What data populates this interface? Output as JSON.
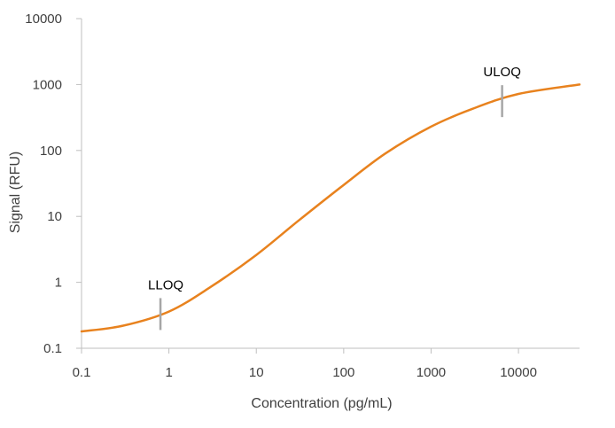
{
  "chart_data": {
    "type": "line",
    "title": "",
    "xlabel": "Concentration (pg/mL)",
    "ylabel": "Signal (RFU)",
    "x_scale": "log",
    "y_scale": "log",
    "xlim": [
      0.1,
      50000
    ],
    "ylim": [
      0.1,
      10000
    ],
    "x_ticks": [
      0.1,
      1,
      10,
      100,
      1000,
      10000
    ],
    "x_tick_labels": [
      "0.1",
      "1",
      "10",
      "100",
      "1000",
      "10000"
    ],
    "y_ticks": [
      0.1,
      1,
      10,
      100,
      1000,
      10000
    ],
    "y_tick_labels": [
      "0.1",
      "1",
      "10",
      "100",
      "1000",
      "10000"
    ],
    "grid": false,
    "legend": "none",
    "series": [
      {
        "color": "#E8821E",
        "x": [
          0.1,
          0.3,
          1,
          3,
          10,
          30,
          100,
          300,
          1000,
          3000,
          10000,
          50000
        ],
        "y": [
          0.18,
          0.22,
          0.36,
          0.85,
          2.6,
          8.5,
          30,
          90,
          230,
          430,
          720,
          1000
        ]
      }
    ],
    "annotations": [
      {
        "label": "LLOQ",
        "x": 0.8,
        "y": 0.33,
        "position": "above-left"
      },
      {
        "label": "ULOQ",
        "x": 6500,
        "y": 560,
        "position": "above"
      }
    ],
    "colors": {
      "curve": "#E8821E",
      "marker": "#A6A6A6",
      "axis": "#BFBFBF",
      "text": "#404040"
    }
  }
}
